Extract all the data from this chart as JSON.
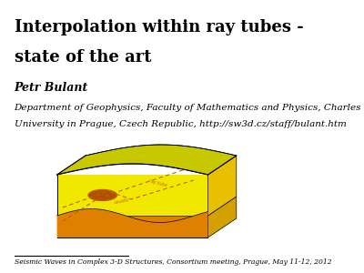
{
  "title_line1": "Interpolation within ray tubes -",
  "title_line2": "state of the art",
  "author": "Petr Bulant",
  "affiliation_line1": "Department of Geophysics, Faculty of Mathematics and Physics, Charles",
  "affiliation_line2": "University in Prague, Czech Republic, http://sw3d.cz/staff/bulant.htm",
  "footer": "Seismic Waves in Complex 3-D Structures, Consortium meeting, Prague, May 11-12, 2012",
  "bg_color": "#ffffff",
  "title_fontsize": 13,
  "author_fontsize": 9,
  "affil_fontsize": 7.5,
  "footer_fontsize": 5.5,
  "box_color_top": "#c8c800",
  "box_color_face": "#f0e800",
  "box_color_bottom": "#e08000",
  "box_color_right": "#d4a000",
  "lens_color": "#b05000",
  "dashed_color": "#c06000"
}
